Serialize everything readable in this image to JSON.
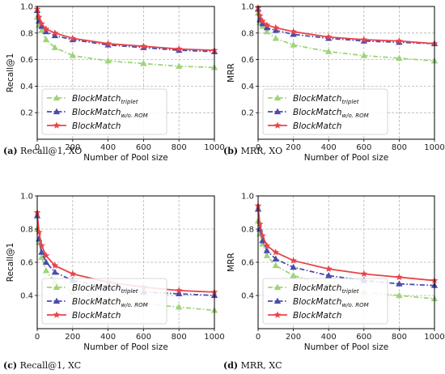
{
  "chart_data": [
    {
      "type": "line",
      "caption_letter": "(a)",
      "caption_text": "Recall@1, XO",
      "xlabel": "Number of Pool size",
      "ylabel": "Recall@1",
      "xlim": [
        0,
        1000
      ],
      "ylim": [
        0,
        1.0
      ],
      "xticks": [
        0,
        200,
        400,
        600,
        800,
        1000
      ],
      "yticks": [
        0.2,
        0.4,
        0.6,
        0.8,
        1.0
      ],
      "grid": true,
      "legend_placement": "lower-left",
      "x": [
        0,
        10,
        25,
        50,
        100,
        200,
        400,
        600,
        800,
        1000
      ],
      "series": [
        {
          "name": "BlockMatch",
          "subscript": "triplet",
          "color": "#9ed47a",
          "dash": "dashdot",
          "marker": "triangle",
          "values": [
            0.92,
            0.86,
            0.82,
            0.75,
            0.69,
            0.63,
            0.59,
            0.57,
            0.55,
            0.54
          ]
        },
        {
          "name": "BlockMatch",
          "subscript": "w/o. ROM",
          "color": "#4a4cad",
          "dash": "dashdot",
          "marker": "triangle",
          "values": [
            0.97,
            0.89,
            0.85,
            0.81,
            0.78,
            0.75,
            0.71,
            0.69,
            0.67,
            0.66
          ]
        },
        {
          "name": "BlockMatch",
          "subscript": "",
          "color": "#e8454a",
          "dash": "solid",
          "marker": "star",
          "values": [
            0.98,
            0.92,
            0.87,
            0.83,
            0.8,
            0.76,
            0.72,
            0.7,
            0.68,
            0.67
          ]
        }
      ]
    },
    {
      "type": "line",
      "caption_letter": "(b)",
      "caption_text": "MRR, XO",
      "xlabel": "Number of Pool size",
      "ylabel": "MRR",
      "xlim": [
        0,
        1000
      ],
      "ylim": [
        0,
        1.0
      ],
      "xticks": [
        0,
        200,
        400,
        600,
        800,
        1000
      ],
      "yticks": [
        0.2,
        0.4,
        0.6,
        0.8,
        1.0
      ],
      "grid": true,
      "legend_placement": "lower-left",
      "x": [
        0,
        10,
        25,
        50,
        100,
        200,
        400,
        600,
        800,
        1000
      ],
      "series": [
        {
          "name": "BlockMatch",
          "subscript": "triplet",
          "color": "#9ed47a",
          "dash": "dashdot",
          "marker": "triangle",
          "values": [
            0.95,
            0.88,
            0.85,
            0.81,
            0.76,
            0.71,
            0.66,
            0.63,
            0.61,
            0.59
          ]
        },
        {
          "name": "BlockMatch",
          "subscript": "w/o. ROM",
          "color": "#4a4cad",
          "dash": "dashdot",
          "marker": "triangle",
          "values": [
            0.98,
            0.9,
            0.87,
            0.84,
            0.82,
            0.79,
            0.76,
            0.74,
            0.73,
            0.72
          ]
        },
        {
          "name": "BlockMatch",
          "subscript": "",
          "color": "#e8454a",
          "dash": "solid",
          "marker": "star",
          "values": [
            0.99,
            0.93,
            0.89,
            0.86,
            0.84,
            0.81,
            0.77,
            0.75,
            0.74,
            0.72
          ]
        }
      ]
    },
    {
      "type": "line",
      "caption_letter": "(c)",
      "caption_text": "Recall@1, XC",
      "xlabel": "Number of Pool size",
      "ylabel": "Recall@1",
      "xlim": [
        0,
        1000
      ],
      "ylim": [
        0.2,
        1.0
      ],
      "xticks": [
        0,
        200,
        400,
        600,
        800,
        1000
      ],
      "yticks": [
        0.4,
        0.6,
        0.8,
        1.0
      ],
      "grid": true,
      "legend_placement": "lower-left",
      "x": [
        0,
        10,
        25,
        50,
        100,
        200,
        400,
        600,
        800,
        1000
      ],
      "series": [
        {
          "name": "BlockMatch",
          "subscript": "triplet",
          "color": "#9ed47a",
          "dash": "dashdot",
          "marker": "triangle",
          "values": [
            0.8,
            0.72,
            0.63,
            0.55,
            0.48,
            0.42,
            0.37,
            0.35,
            0.33,
            0.31
          ]
        },
        {
          "name": "BlockMatch",
          "subscript": "w/o. ROM",
          "color": "#4a4cad",
          "dash": "dashdot",
          "marker": "triangle",
          "values": [
            0.88,
            0.74,
            0.66,
            0.6,
            0.54,
            0.49,
            0.45,
            0.42,
            0.41,
            0.4
          ]
        },
        {
          "name": "BlockMatch",
          "subscript": "",
          "color": "#e8454a",
          "dash": "solid",
          "marker": "star",
          "values": [
            0.9,
            0.78,
            0.7,
            0.64,
            0.58,
            0.53,
            0.48,
            0.45,
            0.43,
            0.42
          ]
        }
      ]
    },
    {
      "type": "line",
      "caption_letter": "(d)",
      "caption_text": "MRR, XC",
      "xlabel": "Number of Pool size",
      "ylabel": "MRR",
      "xlim": [
        0,
        1000
      ],
      "ylim": [
        0.2,
        1.0
      ],
      "xticks": [
        0,
        200,
        400,
        600,
        800,
        1000
      ],
      "yticks": [
        0.4,
        0.6,
        0.8,
        1.0
      ],
      "grid": true,
      "legend_placement": "lower-left",
      "x": [
        0,
        10,
        25,
        50,
        100,
        200,
        400,
        600,
        800,
        1000
      ],
      "series": [
        {
          "name": "BlockMatch",
          "subscript": "triplet",
          "color": "#9ed47a",
          "dash": "dashdot",
          "marker": "triangle",
          "values": [
            0.85,
            0.77,
            0.71,
            0.64,
            0.58,
            0.52,
            0.46,
            0.42,
            0.4,
            0.38
          ]
        },
        {
          "name": "BlockMatch",
          "subscript": "w/o. ROM",
          "color": "#4a4cad",
          "dash": "dashdot",
          "marker": "triangle",
          "values": [
            0.92,
            0.8,
            0.73,
            0.67,
            0.62,
            0.57,
            0.52,
            0.49,
            0.47,
            0.46
          ]
        },
        {
          "name": "BlockMatch",
          "subscript": "",
          "color": "#e8454a",
          "dash": "solid",
          "marker": "star",
          "values": [
            0.94,
            0.83,
            0.76,
            0.7,
            0.66,
            0.61,
            0.56,
            0.53,
            0.51,
            0.49
          ]
        }
      ]
    }
  ]
}
